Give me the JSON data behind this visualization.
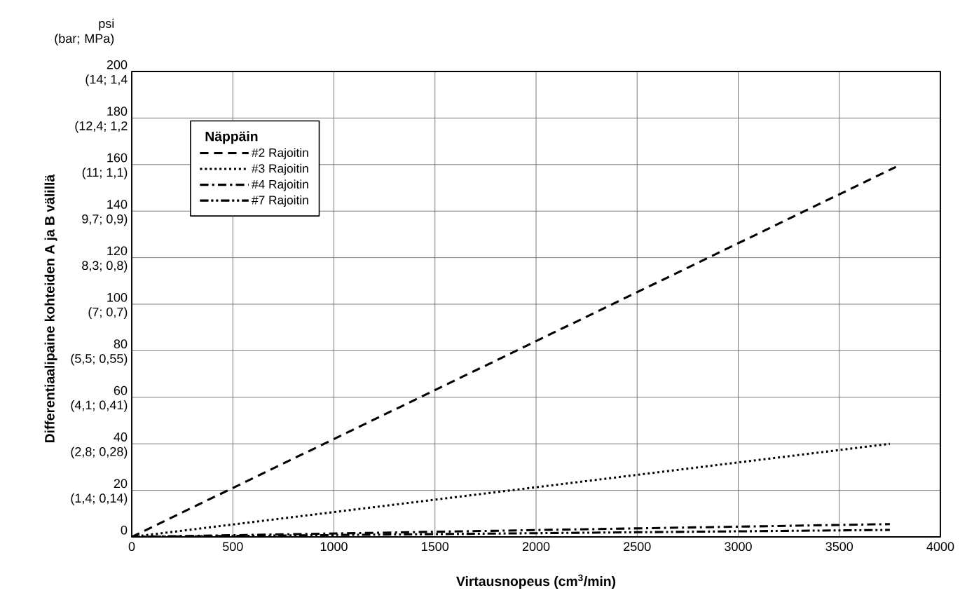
{
  "chart_data": {
    "type": "line",
    "xlabel": "Virtausnopeus (cm$^{3}$/min)",
    "ylabel": "Differentiaalipaine kohteiden A ja B välillä",
    "legend_title": "Näppäin",
    "annotations": [
      "psi\n(bar; MPa)",
      "(1,4; 0,14)",
      "(2,8; 0,28)",
      "(4,1; 0,41)",
      "(5,5; 0,55)",
      "(7; 0,7)",
      "8,3; 0,8)",
      "9,7; 0,9)",
      "(11; 1,1)",
      "(12,4; 1,2",
      "(14; 1,4"
    ],
    "xlim": [
      0,
      4000
    ],
    "ylim": [
      0,
      200
    ],
    "xticks": [
      0,
      500,
      1000,
      1500,
      2000,
      2500,
      3000,
      3500,
      4000
    ],
    "yticks": [
      0,
      20,
      40,
      60,
      80,
      100,
      120,
      140,
      160,
      180,
      200
    ],
    "grid": true,
    "legend": "top left",
    "marker": "none",
    "series": [
      {
        "name": "#2 Rajoitin",
        "color": "#000000",
        "line_style": "dashed",
        "x": [
          0,
          3780
        ],
        "values": [
          0,
          159
        ]
      },
      {
        "name": "#3 Rajoitin",
        "color": "#000000",
        "line_style": "dotted",
        "x": [
          0,
          3750
        ],
        "values": [
          0,
          40
        ]
      },
      {
        "name": "#4 Rajoitin",
        "color": "#000000",
        "line_style": "dashdot",
        "x": [
          0,
          3750
        ],
        "values": [
          0,
          5.5
        ]
      },
      {
        "name": "#7 Rajoitin",
        "color": "#000000",
        "line_style": "dashdotdot",
        "x": [
          0,
          3750
        ],
        "values": [
          0,
          3
        ]
      }
    ]
  }
}
